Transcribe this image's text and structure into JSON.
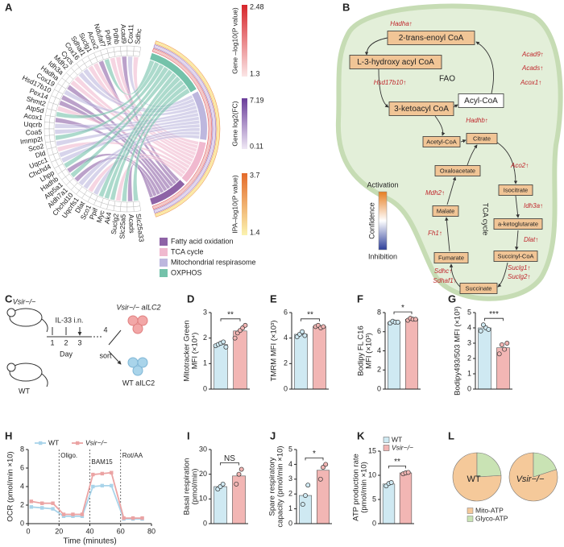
{
  "panel_labels": [
    "A",
    "B",
    "C",
    "D",
    "E",
    "F",
    "G",
    "H",
    "I",
    "J",
    "K",
    "L"
  ],
  "chord": {
    "genes": [
      "Sdhc",
      "Cox11",
      "Acad9",
      "Pdhb",
      "Pdhx",
      "Ndufaf7",
      "Acox2",
      "Suclg1",
      "Sdhaf1",
      "Cox16",
      "Cycs",
      "Mdh2",
      "Idh3a",
      "Hadha",
      "Cox19",
      "Hsd17b10",
      "Pex14",
      "Shmt2",
      "Atp5d",
      "Acox1",
      "Uqcrb",
      "Coa5",
      "Immp2l",
      "Sco2",
      "Dld",
      "Uqcc1",
      "Chchd4",
      "Lhpp",
      "Hadhb",
      "Atp5a1",
      "Aldh7a1",
      "Chchd10",
      "Uqcrfs1",
      "Dlat",
      "Sco1",
      "Ppif",
      "Myc",
      "Ak4",
      "Suclg2",
      "Slc25a5",
      "Acads",
      "Slc25a33"
    ],
    "scales": [
      {
        "title": "Gene –log10(P value)",
        "max": 2.48,
        "min": 1.3,
        "colors": [
          "#d7252b",
          "#fbe6e6"
        ]
      },
      {
        "title": "Gene log2(FC)",
        "max": 7.19,
        "min": 0.11,
        "colors": [
          "#6a3d9a",
          "#efe8f5"
        ]
      },
      {
        "title": "IPA–log10(P value)",
        "max": 3.7,
        "min": 1.4,
        "colors": [
          "#e46a2a",
          "#fbf3b0"
        ]
      }
    ],
    "legend": [
      {
        "name": "Fatty acid oxidation",
        "color": "#8e63a6"
      },
      {
        "name": "TCA cycle",
        "color": "#f0b9cf"
      },
      {
        "name": "Mitochondrial respirasome",
        "color": "#bdb7de"
      },
      {
        "name": "OXPHOS",
        "color": "#74c2aa"
      }
    ]
  },
  "pathway": {
    "nodes": [
      "2-trans-enoyl CoA",
      "L-3-hydroxy acyl CoA",
      "3-ketoacyl CoA",
      "Acyl-CoA",
      "Acetyl-CoA",
      "Citrate",
      "Isocitrate",
      "a-ketoglutarate",
      "Succinyl-CoA",
      "Succinate",
      "Fumarate",
      "Malate",
      "Oxaloacetate"
    ],
    "enzymes": [
      "Hadha↑",
      "Hsd17b10↑",
      "Acad9↑",
      "Acads↑",
      "Acox1↑",
      "Hadhb↑",
      "Aco2↑",
      "Idh3a↑",
      "Dlat↑",
      "Suclg1↑",
      "Suclg2↑",
      "Sdhc↑",
      "Sdhaf1↑",
      "Fh1↑",
      "Mdh2↑"
    ],
    "labels": [
      "FAO",
      "TCA cycle"
    ],
    "legend": {
      "top": "Activation",
      "middle": "Confidence",
      "bottom": "Inhibition"
    }
  },
  "schematic": {
    "mouse_labels": [
      "Vsir−/−",
      "WT"
    ],
    "treatment": "IL-33 i.n.",
    "days": [
      "1",
      "2",
      "3",
      "4"
    ],
    "day_label": "Day",
    "sort": "sort",
    "cell_labels": [
      "Vsir−/− aILC2",
      "WT aILC2"
    ]
  },
  "chart_data": [
    {
      "type": "bar",
      "ylabel": [
        "Mitotracker Green",
        "MFI (×10⁴)"
      ],
      "ylim": [
        0,
        3
      ],
      "yticks": [
        0,
        1,
        2,
        3
      ],
      "values": [
        1.75,
        2.28
      ],
      "colors": [
        "#cfe9f2",
        "#f2b6b4"
      ],
      "points": [
        [
          1.7,
          1.75,
          1.8,
          1.85,
          1.65
        ],
        [
          2.0,
          2.2,
          2.3,
          2.4,
          2.5
        ]
      ],
      "significance": "**"
    },
    {
      "type": "bar",
      "ylabel": [
        "TMRM MFI (×10³)"
      ],
      "ylim": [
        0,
        6
      ],
      "yticks": [
        0,
        2,
        4,
        6
      ],
      "values": [
        4.3,
        4.9
      ],
      "colors": [
        "#cfe9f2",
        "#f2b6b4"
      ],
      "points": [
        [
          4.1,
          4.3,
          4.5,
          4.2
        ],
        [
          4.9,
          5.0,
          4.8,
          4.9
        ]
      ],
      "significance": "**"
    },
    {
      "type": "bar",
      "ylabel": [
        "Bodipy FL C16",
        "MFI (×10³)"
      ],
      "ylim": [
        0,
        8
      ],
      "yticks": [
        0,
        2,
        4,
        6,
        8
      ],
      "values": [
        7.0,
        7.3
      ],
      "colors": [
        "#cfe9f2",
        "#f2b6b4"
      ],
      "points": [
        [
          6.9,
          7.1,
          7.0,
          7.0
        ],
        [
          7.2,
          7.4,
          7.3,
          7.3
        ]
      ],
      "significance": "*"
    },
    {
      "type": "bar",
      "ylabel": [
        "Bodipy493/503 MFI (×10³)"
      ],
      "ylim": [
        0,
        5
      ],
      "yticks": [
        0,
        1,
        2,
        3,
        4,
        5
      ],
      "values": [
        4.0,
        2.7
      ],
      "colors": [
        "#cfe9f2",
        "#f2b6b4"
      ],
      "points": [
        [
          3.8,
          4.2,
          4.0,
          3.9
        ],
        [
          2.3,
          2.9,
          2.6,
          3.0
        ]
      ],
      "significance": "***"
    },
    {
      "type": "line",
      "ylabel": "OCR (pmol/min ×10)",
      "xlabel": "Time (minutes)",
      "xlim": [
        0,
        80
      ],
      "xticks": [
        0,
        20,
        40,
        60,
        80
      ],
      "ylim": [
        0,
        8
      ],
      "yticks": [
        0,
        2,
        4,
        6,
        8
      ],
      "x": [
        2,
        9,
        16,
        23,
        29,
        35,
        42,
        48,
        54,
        62,
        68,
        74
      ],
      "series": [
        {
          "name": "WT",
          "color": "#a9d4ea",
          "values": [
            1.8,
            1.7,
            1.6,
            0.8,
            0.8,
            0.8,
            4.0,
            4.1,
            4.1,
            0.5,
            0.5,
            0.5
          ]
        },
        {
          "name": "Vsir−/−",
          "color": "#eba3a3",
          "values": [
            2.4,
            2.2,
            2.2,
            1.0,
            1.0,
            1.0,
            5.3,
            5.4,
            5.5,
            0.6,
            0.6,
            0.6
          ]
        }
      ],
      "annotations": [
        {
          "x": 20,
          "text": "Oligo."
        },
        {
          "x": 40,
          "text": "BAM15"
        },
        {
          "x": 60,
          "text": "Rot/AA"
        }
      ]
    },
    {
      "type": "bar",
      "ylabel": [
        "Basal respiration",
        "(pmol/min)"
      ],
      "ylim": [
        0,
        30
      ],
      "yticks": [
        0,
        10,
        20,
        30
      ],
      "values": [
        15,
        19.3
      ],
      "colors": [
        "#cfe9f2",
        "#f2b6b4"
      ],
      "points": [
        [
          14,
          15,
          16
        ],
        [
          16,
          20,
          22
        ]
      ],
      "significance": "NS"
    },
    {
      "type": "bar",
      "ylabel": [
        "Spare respiratory",
        "capacity (pmol/min ×10)"
      ],
      "ylim": [
        0,
        5
      ],
      "yticks": [
        0,
        1,
        2,
        3,
        4,
        5
      ],
      "values": [
        1.9,
        3.6
      ],
      "colors": [
        "#cfe9f2",
        "#f2b6b4"
      ],
      "points": [
        [
          1.3,
          1.9,
          2.6
        ],
        [
          3.0,
          3.8,
          4.0
        ]
      ],
      "significance": "*"
    },
    {
      "type": "bar",
      "ylabel": [
        "ATP production rate",
        "(pmol/min ×10)"
      ],
      "ylim": [
        0,
        15
      ],
      "yticks": [
        0,
        5,
        10,
        15
      ],
      "values": [
        8.2,
        10.5
      ],
      "colors": [
        "#cfe9f2",
        "#f2b6b4"
      ],
      "points": [
        [
          7.8,
          8.3,
          8.5
        ],
        [
          10.3,
          10.5,
          10.6
        ]
      ],
      "significance": "**",
      "legend": [
        "WT",
        "Vsir−/−"
      ]
    },
    {
      "type": "pie",
      "categories": [
        "Mito-ATP",
        "Glyco-ATP"
      ],
      "colors": [
        "#f5c99a",
        "#c9e3b4"
      ],
      "pies": [
        {
          "title": "WT",
          "values": [
            76,
            24
          ]
        },
        {
          "title": "Vsir−/−",
          "values": [
            80,
            20
          ]
        }
      ]
    }
  ]
}
